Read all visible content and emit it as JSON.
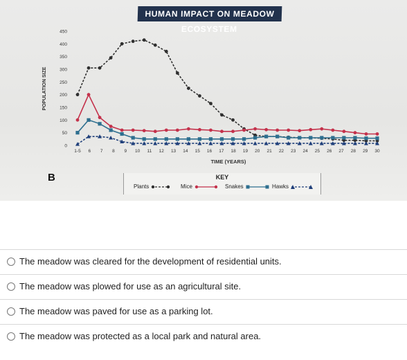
{
  "chart_data": {
    "type": "line",
    "title": "HUMAN IMPACT ON MEADOW ECOSYSTEM",
    "xlabel": "TIME (YEARS)",
    "ylabel": "POPULATION SIZE",
    "x_ticks": [
      "1-5",
      "6",
      "7",
      "8",
      "9",
      "10",
      "11",
      "12",
      "13",
      "14",
      "15",
      "16",
      "17",
      "18",
      "19",
      "20",
      "21",
      "22",
      "23",
      "24",
      "25",
      "26",
      "27",
      "28",
      "29",
      "30"
    ],
    "y_ticks": [
      0,
      50,
      100,
      150,
      200,
      250,
      300,
      350,
      400,
      450
    ],
    "ylim": [
      0,
      450
    ],
    "grid": false,
    "legend_title": "KEY",
    "series": [
      {
        "name": "Plants",
        "color": "#2f2f2f",
        "marker": "circle",
        "dash": "3,2",
        "values": [
          200,
          305,
          305,
          345,
          400,
          410,
          415,
          395,
          370,
          285,
          225,
          195,
          165,
          120,
          100,
          65,
          40,
          35,
          35,
          32,
          30,
          30,
          28,
          25,
          20,
          20,
          18,
          18
        ]
      },
      {
        "name": "Mice",
        "color": "#c4314b",
        "marker": "circle",
        "dash": "none",
        "values": [
          100,
          200,
          110,
          75,
          60,
          60,
          58,
          55,
          60,
          60,
          65,
          62,
          60,
          55,
          55,
          60,
          65,
          62,
          60,
          60,
          58,
          62,
          65,
          60,
          55,
          50,
          45,
          45
        ]
      },
      {
        "name": "Snakes",
        "color": "#2e6f8f",
        "marker": "square",
        "dash": "none",
        "values": [
          50,
          100,
          85,
          60,
          45,
          30,
          25,
          25,
          25,
          25,
          25,
          25,
          25,
          25,
          25,
          25,
          30,
          35,
          35,
          30,
          30,
          30,
          30,
          30,
          30,
          30,
          28,
          28
        ]
      },
      {
        "name": "Hawks",
        "color": "#1f3f7a",
        "marker": "triangle",
        "dash": "3,2",
        "values": [
          5,
          35,
          35,
          30,
          15,
          8,
          8,
          8,
          8,
          8,
          8,
          8,
          8,
          8,
          8,
          8,
          8,
          8,
          8,
          8,
          8,
          8,
          8,
          8,
          8,
          8,
          8,
          8
        ]
      }
    ]
  },
  "panel": {
    "letter": "B"
  },
  "question": {
    "options": [
      {
        "label": "The meadow was cleared for the development of residential units."
      },
      {
        "label": "The meadow was plowed for use as an agricultural site."
      },
      {
        "label": "The meadow was paved for use as a parking lot."
      },
      {
        "label": "The meadow was protected as a local park and natural area."
      }
    ]
  }
}
